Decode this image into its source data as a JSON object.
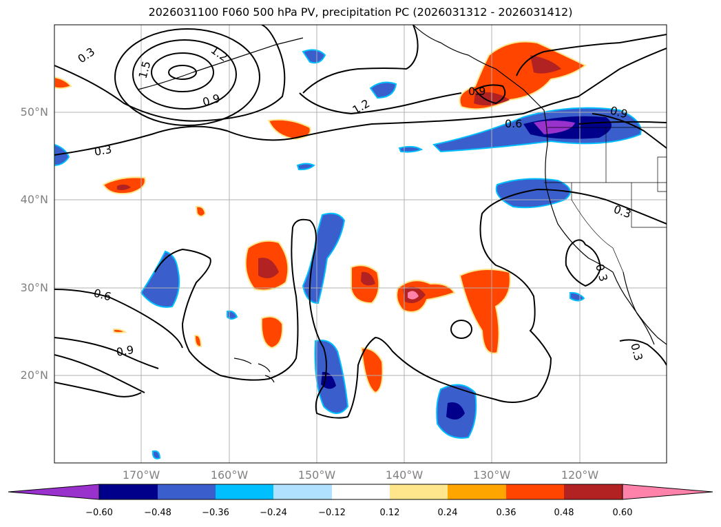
{
  "title": "2026031100 F060 500 hPa PV, precipitation PC (2026031312 - 2026031412)",
  "axes": {
    "lat_labels": [
      "50°N",
      "40°N",
      "30°N",
      "20°N"
    ],
    "lon_labels": [
      "170°W",
      "160°W",
      "150°W",
      "140°W",
      "130°W",
      "120°W"
    ]
  },
  "colorbar": {
    "ticks": [
      "−0.60",
      "−0.48",
      "−0.36",
      "−0.24",
      "−0.12",
      "0.12",
      "0.24",
      "0.36",
      "0.48",
      "0.60"
    ],
    "colors": [
      "#9932cc",
      "#00008b",
      "#3a5fcd",
      "#00bfff",
      "#b0e2ff",
      "#ffffff",
      "#ffe68c",
      "#ffa500",
      "#ff4500",
      "#b22222",
      "#ff82ab"
    ]
  },
  "contour_labels": [
    "0.3",
    "1.2",
    "1.5",
    "0.9",
    "1.2",
    "0.9",
    "0.6",
    "0.9",
    "0.3",
    "0.3",
    "0.6",
    "0.9",
    "0.3",
    "0.3"
  ],
  "colors": {
    "neg_strong": "#00008b",
    "neg_mid": "#3a5fcd",
    "neg_light": "#00bfff",
    "pos_light": "#ffe68c",
    "pos_orange": "#ffa500",
    "pos_red": "#ff4500",
    "pos_dark": "#b22222",
    "pos_pink": "#ff82ab",
    "neg_purple": "#9932cc"
  }
}
